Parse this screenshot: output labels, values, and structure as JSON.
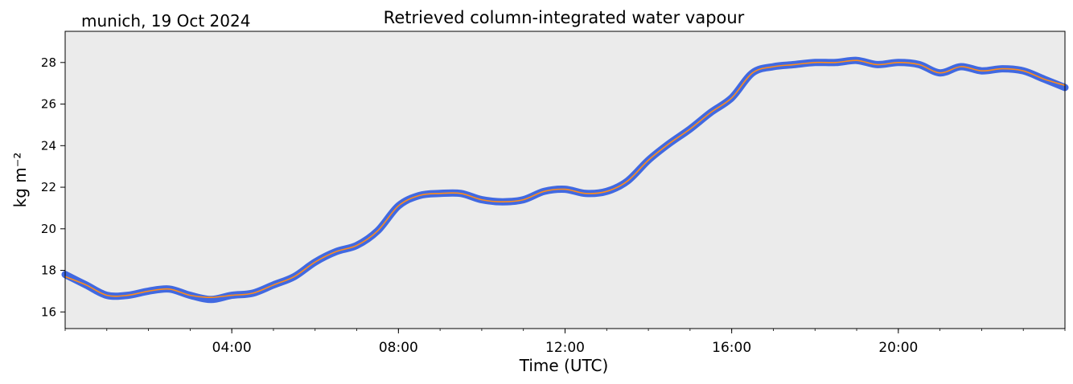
{
  "header": {
    "location_date": "munich, 19 Oct 2024"
  },
  "chart_data": {
    "type": "line",
    "title": "Retrieved column-integrated water vapour",
    "xlabel": "Time (UTC)",
    "ylabel": "kg m⁻²",
    "xlim": [
      "00:00",
      "24:00"
    ],
    "ylim": [
      15.2,
      29.5
    ],
    "x_ticks": [
      "04:00",
      "08:00",
      "12:00",
      "16:00",
      "20:00"
    ],
    "y_ticks": [
      16,
      18,
      20,
      22,
      24,
      26,
      28
    ],
    "grid": false,
    "background_color": "#ebebeb",
    "series": [
      {
        "kind": "raw-retrieval",
        "color": "#4169e1",
        "x": [
          "00:00",
          "00:30",
          "01:00",
          "01:30",
          "02:00",
          "02:30",
          "03:00",
          "03:30",
          "04:00",
          "04:30",
          "05:00",
          "05:30",
          "06:00",
          "06:30",
          "07:00",
          "07:30",
          "08:00",
          "08:30",
          "09:00",
          "09:30",
          "10:00",
          "10:30",
          "11:00",
          "11:30",
          "12:00",
          "12:30",
          "13:00",
          "13:30",
          "14:00",
          "14:30",
          "15:00",
          "15:30",
          "16:00",
          "16:30",
          "17:00",
          "17:30",
          "18:00",
          "18:30",
          "19:00",
          "19:30",
          "20:00",
          "20:30",
          "21:00",
          "21:30",
          "22:00",
          "22:30",
          "23:00",
          "23:30",
          "24:00"
        ],
        "y": [
          17.8,
          17.3,
          16.8,
          16.8,
          17.0,
          17.1,
          16.8,
          16.6,
          16.8,
          16.9,
          17.3,
          17.7,
          18.4,
          18.9,
          19.2,
          19.9,
          21.1,
          21.6,
          21.7,
          21.7,
          21.4,
          21.3,
          21.4,
          21.8,
          21.9,
          21.7,
          21.8,
          22.3,
          23.3,
          24.1,
          24.8,
          25.6,
          26.3,
          27.5,
          27.8,
          27.9,
          28.0,
          28.0,
          28.1,
          27.9,
          28.0,
          27.9,
          27.5,
          27.8,
          27.6,
          27.7,
          27.6,
          27.2,
          26.8
        ]
      },
      {
        "kind": "smoothed",
        "color": "#ff8c1a",
        "x": [
          "00:00",
          "00:30",
          "01:00",
          "01:30",
          "02:00",
          "02:30",
          "03:00",
          "03:30",
          "04:00",
          "04:30",
          "05:00",
          "05:30",
          "06:00",
          "06:30",
          "07:00",
          "07:30",
          "08:00",
          "08:30",
          "09:00",
          "09:30",
          "10:00",
          "10:30",
          "11:00",
          "11:30",
          "12:00",
          "12:30",
          "13:00",
          "13:30",
          "14:00",
          "14:30",
          "15:00",
          "15:30",
          "16:00",
          "16:30",
          "17:00",
          "17:30",
          "18:00",
          "18:30",
          "19:00",
          "19:30",
          "20:00",
          "20:30",
          "21:00",
          "21:30",
          "22:00",
          "22:30",
          "23:00",
          "23:30",
          "24:00"
        ],
        "y": [
          17.7,
          17.3,
          16.8,
          16.8,
          17.0,
          17.1,
          16.8,
          16.7,
          16.8,
          16.9,
          17.3,
          17.7,
          18.4,
          18.9,
          19.2,
          19.9,
          21.1,
          21.6,
          21.7,
          21.7,
          21.4,
          21.3,
          21.4,
          21.8,
          21.9,
          21.7,
          21.8,
          22.3,
          23.3,
          24.1,
          24.8,
          25.6,
          26.3,
          27.5,
          27.8,
          27.9,
          28.0,
          28.0,
          28.1,
          27.9,
          28.0,
          27.9,
          27.5,
          27.8,
          27.6,
          27.7,
          27.6,
          27.2,
          26.9
        ]
      }
    ]
  }
}
